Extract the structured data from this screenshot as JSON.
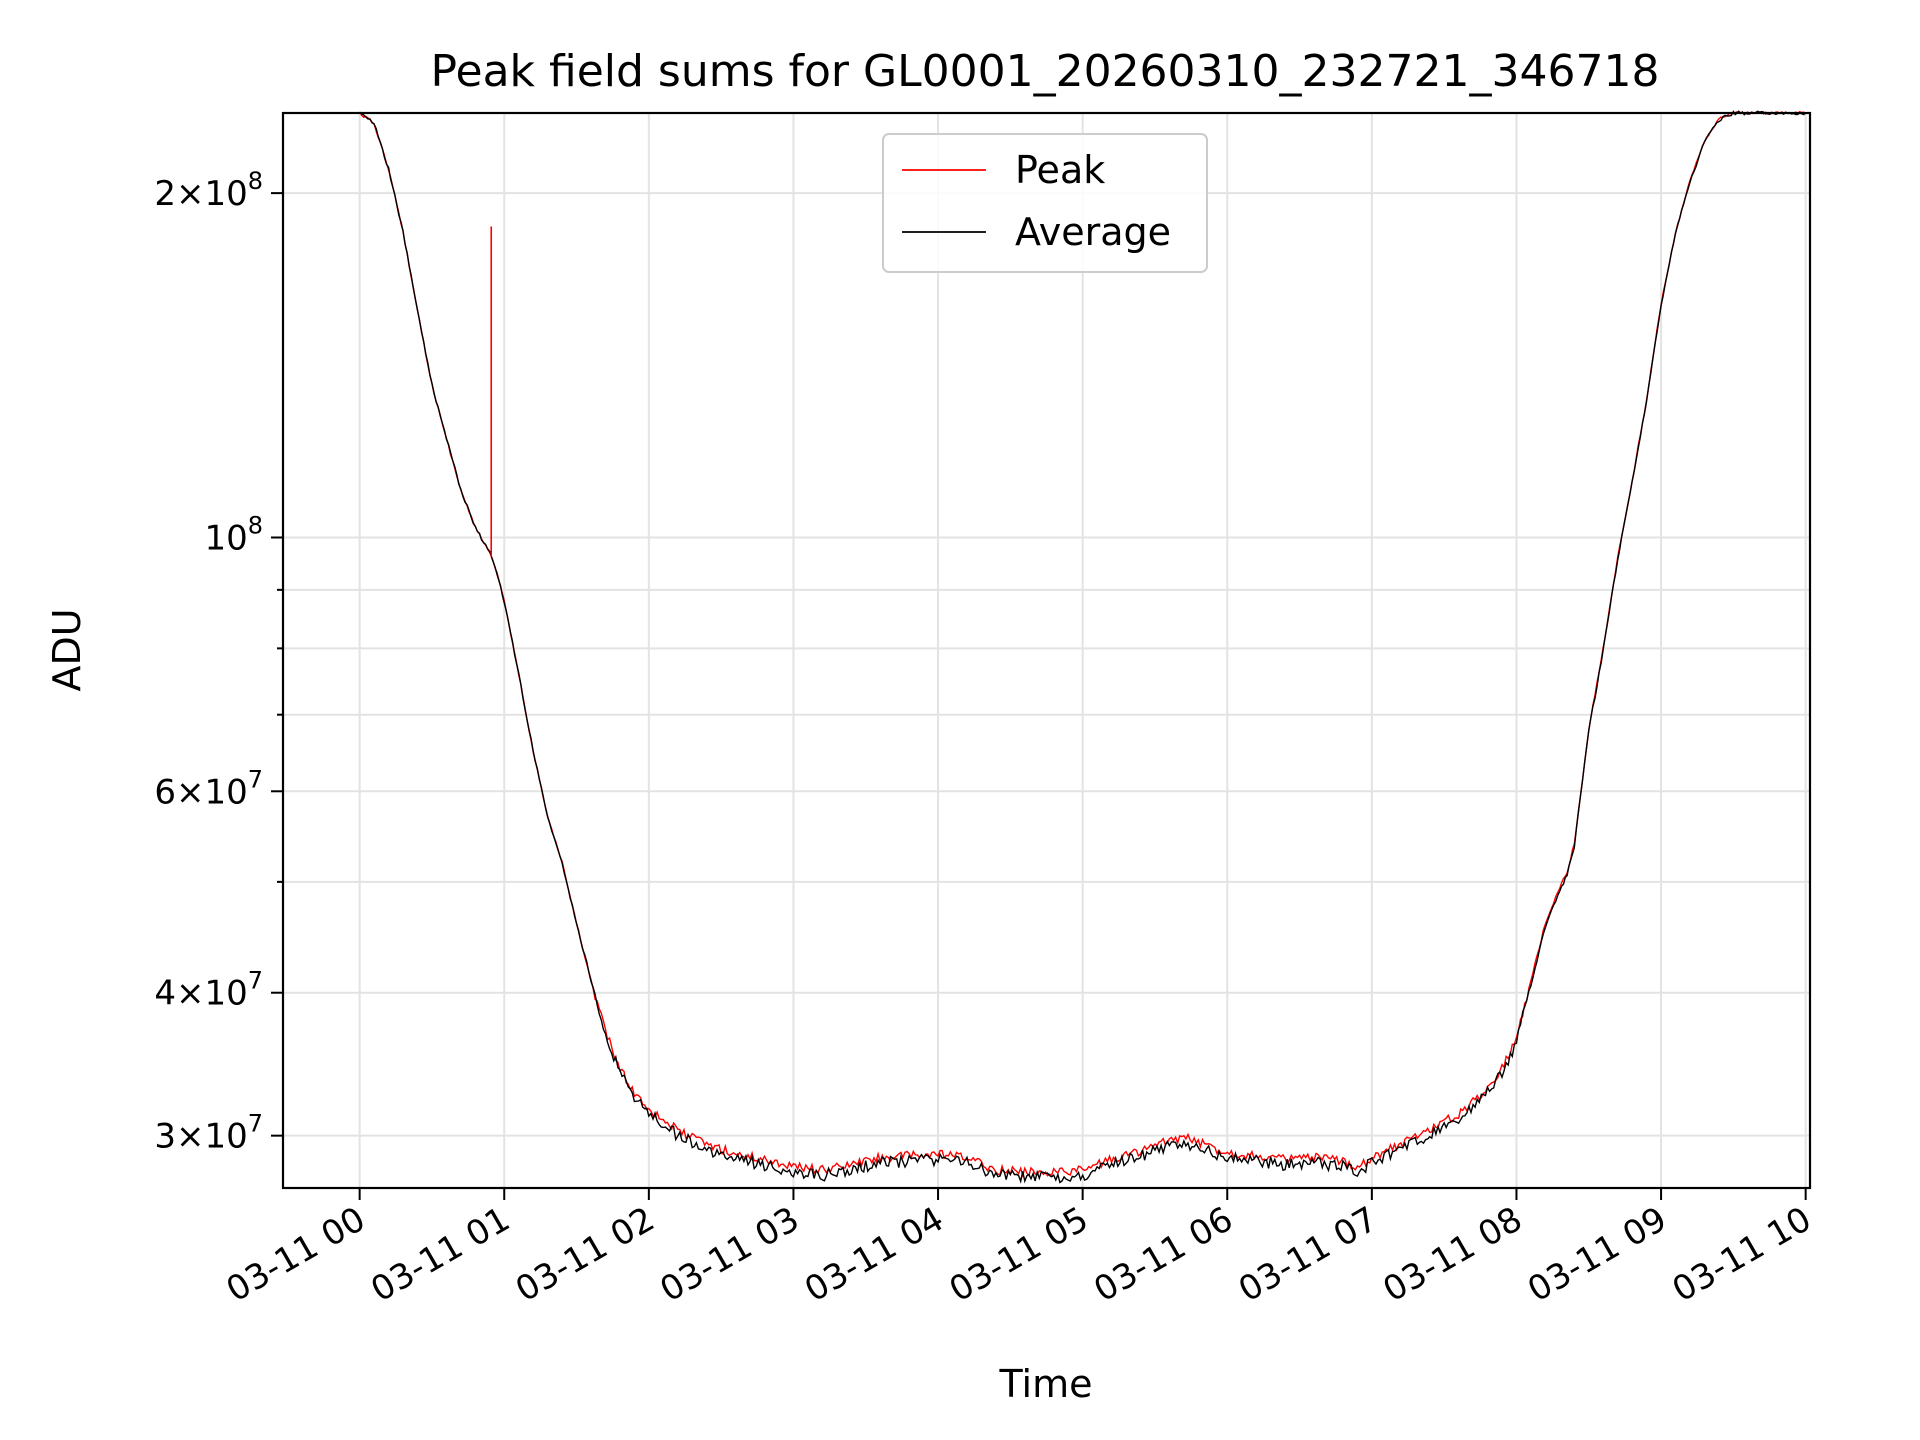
{
  "chart_data": {
    "type": "line",
    "title": "Peak field sums for GL0001_20260310_232721_346718",
    "xlabel": "Time",
    "ylabel": "ADU",
    "yscale": "log",
    "ylim": [
      27000000,
      235000000
    ],
    "xlim_hours": [
      -0.53,
      10.03
    ],
    "grid": true,
    "legend": {
      "placement": "upper center",
      "entries": [
        {
          "name": "Peak",
          "color": "#ff0000"
        },
        {
          "name": "Average",
          "color": "#000000"
        }
      ]
    },
    "x_ticks": [
      {
        "hour": 0,
        "label": "03-11 00"
      },
      {
        "hour": 1,
        "label": "03-11 01"
      },
      {
        "hour": 2,
        "label": "03-11 02"
      },
      {
        "hour": 3,
        "label": "03-11 03"
      },
      {
        "hour": 4,
        "label": "03-11 04"
      },
      {
        "hour": 5,
        "label": "03-11 05"
      },
      {
        "hour": 6,
        "label": "03-11 06"
      },
      {
        "hour": 7,
        "label": "03-11 07"
      },
      {
        "hour": 8,
        "label": "03-11 08"
      },
      {
        "hour": 9,
        "label": "03-11 09"
      },
      {
        "hour": 10,
        "label": "03-11 10"
      }
    ],
    "y_major_ticks": [
      {
        "value": 30000000,
        "mantissa": "3",
        "exponent": "7"
      },
      {
        "value": 40000000,
        "mantissa": "4",
        "exponent": "7"
      },
      {
        "value": 60000000,
        "mantissa": "6",
        "exponent": "7"
      },
      {
        "value": 100000000,
        "mantissa": "",
        "exponent": "8"
      },
      {
        "value": 200000000,
        "mantissa": "2",
        "exponent": "8"
      }
    ],
    "y_minor_ticks": [
      50000000,
      70000000,
      80000000,
      90000000
    ],
    "series": [
      {
        "name": "Peak",
        "color": "#ff0000",
        "x_hours": [
          0.0,
          0.1,
          0.2,
          0.3,
          0.4,
          0.5,
          0.6,
          0.7,
          0.8,
          0.9,
          0.95,
          1.0,
          1.1,
          1.2,
          1.3,
          1.4,
          1.5,
          1.6,
          1.7,
          1.8,
          1.9,
          2.0,
          2.2,
          2.4,
          2.6,
          2.8,
          3.0,
          3.2,
          3.4,
          3.6,
          3.8,
          4.0,
          4.2,
          4.4,
          4.6,
          4.8,
          5.0,
          5.2,
          5.4,
          5.6,
          5.7,
          5.8,
          6.0,
          6.2,
          6.4,
          6.6,
          6.8,
          6.9,
          7.0,
          7.2,
          7.4,
          7.6,
          7.8,
          7.9,
          8.0,
          8.1,
          8.2,
          8.3,
          8.35,
          8.4,
          8.5,
          8.6,
          8.7,
          8.8,
          8.9,
          9.0,
          9.1,
          9.2,
          9.3,
          9.4,
          9.5,
          9.55,
          9.6,
          10.0
        ],
        "values": [
          235000000,
          230000000,
          210000000,
          185000000,
          158000000,
          136000000,
          122000000,
          110000000,
          102000000,
          97000000,
          93000000,
          88000000,
          76000000,
          65000000,
          57000000,
          52000000,
          46000000,
          41000000,
          37000000,
          34300000,
          32700000,
          31700000,
          30300000,
          29500000,
          28900000,
          28600000,
          28200000,
          28000000,
          28300000,
          28700000,
          28800000,
          28900000,
          28700000,
          28000000,
          27900000,
          27900000,
          28000000,
          28600000,
          29100000,
          29700000,
          29900000,
          29600000,
          29000000,
          28800000,
          28600000,
          28700000,
          28500000,
          28200000,
          28700000,
          29500000,
          30400000,
          31300000,
          33000000,
          34400000,
          36500000,
          41000000,
          46000000,
          49500000,
          51000000,
          54000000,
          68000000,
          80000000,
          96000000,
          112000000,
          132000000,
          160000000,
          185000000,
          205000000,
          222000000,
          232000000,
          235000000,
          235000000,
          235000000,
          235000000
        ]
      },
      {
        "name": "Average",
        "color": "#000000",
        "x_hours": [
          0.0,
          0.1,
          0.2,
          0.3,
          0.4,
          0.5,
          0.6,
          0.7,
          0.8,
          0.9,
          0.95,
          1.0,
          1.1,
          1.2,
          1.3,
          1.4,
          1.5,
          1.6,
          1.7,
          1.8,
          1.9,
          2.0,
          2.2,
          2.4,
          2.6,
          2.8,
          3.0,
          3.2,
          3.4,
          3.6,
          3.8,
          4.0,
          4.2,
          4.4,
          4.6,
          4.8,
          5.0,
          5.2,
          5.4,
          5.6,
          5.7,
          5.8,
          6.0,
          6.2,
          6.4,
          6.6,
          6.8,
          6.9,
          7.0,
          7.2,
          7.4,
          7.6,
          7.8,
          7.9,
          8.0,
          8.1,
          8.2,
          8.3,
          8.35,
          8.4,
          8.5,
          8.6,
          8.7,
          8.8,
          8.9,
          9.0,
          9.1,
          9.2,
          9.3,
          9.4,
          9.5,
          9.55,
          9.6,
          10.0
        ],
        "values": [
          235000000,
          230000000,
          210000000,
          185000000,
          158000000,
          136000000,
          122000000,
          110000000,
          102000000,
          97000000,
          93000000,
          88000000,
          76000000,
          65000000,
          57000000,
          52000000,
          46000000,
          41000000,
          37000000,
          34000000,
          32400000,
          31400000,
          30000000,
          29200000,
          28600000,
          28300000,
          27900000,
          27700000,
          28000000,
          28400000,
          28500000,
          28600000,
          28400000,
          27700000,
          27600000,
          27600000,
          27700000,
          28300000,
          28800000,
          29400000,
          29600000,
          29300000,
          28700000,
          28500000,
          28300000,
          28400000,
          28200000,
          27900000,
          28400000,
          29200000,
          30100000,
          31000000,
          32700000,
          34100000,
          36200000,
          40700000,
          45700000,
          49200000,
          50700000,
          53700000,
          67700000,
          79700000,
          95700000,
          111700000,
          131700000,
          159700000,
          184700000,
          204700000,
          221700000,
          231700000,
          235000000,
          235000000,
          235000000,
          235000000
        ]
      }
    ],
    "annotations": [
      {
        "series": "Peak",
        "hour": 0.91,
        "spike_value": 187000000,
        "description": "single spike"
      }
    ]
  }
}
